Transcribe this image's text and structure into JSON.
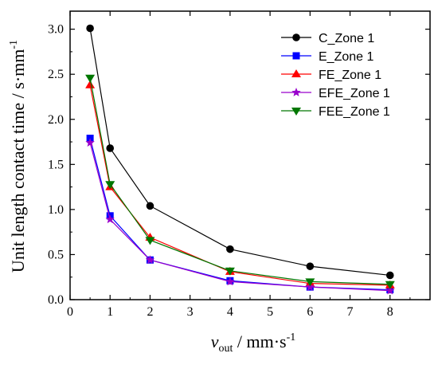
{
  "chart_data": {
    "type": "line",
    "xlabel": {
      "main": "v",
      "sub": "out",
      "rest": " / mm·s",
      "sup": "-1"
    },
    "ylabel": {
      "main": "Unit length contact time / s·mm",
      "sup": "-1"
    },
    "xlim": [
      0,
      9
    ],
    "ylim": [
      0,
      3.2
    ],
    "xticks": [
      "0",
      "1",
      "2",
      "3",
      "4",
      "5",
      "6",
      "7",
      "8"
    ],
    "yticks": [
      "0.0",
      "0.5",
      "1.0",
      "1.5",
      "2.0",
      "2.5",
      "3.0"
    ],
    "x": [
      0.5,
      1,
      2,
      4,
      6,
      8
    ],
    "grid": false,
    "legend_position": "top-right",
    "series": [
      {
        "name": "C_Zone 1",
        "color": "#000000",
        "marker": "circle",
        "values": [
          3.01,
          1.68,
          1.04,
          0.56,
          0.37,
          0.27
        ]
      },
      {
        "name": "E_Zone 1",
        "color": "#0000ff",
        "marker": "square",
        "values": [
          1.79,
          0.93,
          0.44,
          0.21,
          0.14,
          0.11
        ]
      },
      {
        "name": "FE_Zone 1",
        "color": "#ff0000",
        "marker": "triangle-up",
        "values": [
          2.38,
          1.25,
          0.69,
          0.31,
          0.18,
          0.16
        ]
      },
      {
        "name": "EFE_Zone 1",
        "color": "#9900cc",
        "marker": "star",
        "values": [
          1.74,
          0.89,
          0.44,
          0.2,
          0.14,
          0.1
        ]
      },
      {
        "name": "FEE_Zone 1",
        "color": "#007700",
        "marker": "triangle-down",
        "values": [
          2.46,
          1.28,
          0.66,
          0.32,
          0.2,
          0.17
        ]
      }
    ]
  }
}
